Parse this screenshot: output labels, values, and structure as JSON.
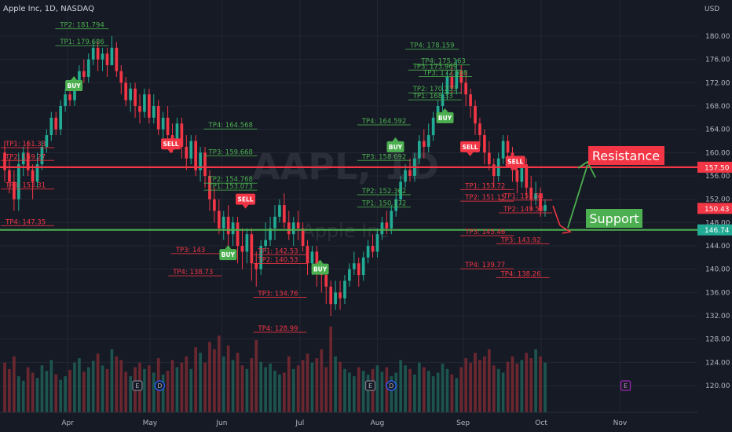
{
  "header": {
    "symbol_line": "Apple Inc, 1D, NASDAQ",
    "currency": "USD"
  },
  "watermark": {
    "ticker": "AAPL, 1D",
    "name": "Apple Inc"
  },
  "price_axis": {
    "ticks": [
      "180.00",
      "176.00",
      "172.00",
      "168.00",
      "164.00",
      "160.00",
      "156.00",
      "152.00",
      "148.00",
      "144.00",
      "140.00",
      "136.00",
      "132.00",
      "128.00",
      "124.00",
      "120.00"
    ]
  },
  "time_axis": {
    "labels": [
      {
        "label": "Apr",
        "t": 0.097
      },
      {
        "label": "May",
        "t": 0.215
      },
      {
        "label": "Jun",
        "t": 0.318
      },
      {
        "label": "Jul",
        "t": 0.43
      },
      {
        "label": "Aug",
        "t": 0.541
      },
      {
        "label": "Sep",
        "t": 0.664
      },
      {
        "label": "Oct",
        "t": 0.776
      },
      {
        "label": "Nov",
        "t": 0.889
      }
    ]
  },
  "price_badges": [
    {
      "label": "157.50",
      "price": 157.5,
      "color": "#f23645"
    },
    {
      "label": "150.43",
      "price": 150.43,
      "color": "#f23645"
    },
    {
      "label": "146.74",
      "price": 146.74,
      "color": "#22ab94"
    }
  ],
  "lines": {
    "resistance": {
      "price": 157.5,
      "color": "#f23645",
      "label": "Resistance"
    },
    "support": {
      "price": 146.74,
      "color": "#4caf50",
      "label": "Support"
    }
  },
  "signals": [
    {
      "label": "BUY",
      "t": 0.106,
      "price": 171.5,
      "dir": "up"
    },
    {
      "label": "SELL",
      "t": 0.245,
      "price": 161.5,
      "dir": "down"
    },
    {
      "label": "SELL",
      "t": 0.352,
      "price": 152.0,
      "dir": "down"
    },
    {
      "label": "BUY",
      "t": 0.327,
      "price": 142.5,
      "dir": "up"
    },
    {
      "label": "BUY",
      "t": 0.459,
      "price": 140.0,
      "dir": "up"
    },
    {
      "label": "BUY",
      "t": 0.567,
      "price": 161.0,
      "dir": "up"
    },
    {
      "label": "BUY",
      "t": 0.638,
      "price": 166.0,
      "dir": "up"
    },
    {
      "label": "SELL",
      "t": 0.674,
      "price": 161.0,
      "dir": "down"
    },
    {
      "label": "SELL",
      "t": 0.739,
      "price": 158.5,
      "dir": "down"
    }
  ],
  "tp_labels": [
    {
      "text": "TP2: 181.794",
      "t": 0.086,
      "price": 181.8,
      "color": "#4caf50"
    },
    {
      "text": "TP1: 179.686",
      "t": 0.086,
      "price": 178.9,
      "color": "#4caf50"
    },
    {
      "text": "TP4: 164.568",
      "t": 0.299,
      "price": 164.6,
      "color": "#4caf50"
    },
    {
      "text": "TP3: 159.668",
      "t": 0.299,
      "price": 160.0,
      "color": "#4caf50"
    },
    {
      "text": "TP2: 154.768",
      "t": 0.299,
      "price": 155.3,
      "color": "#4caf50"
    },
    {
      "text": "TP1: 153.073",
      "t": 0.299,
      "price": 154.1,
      "color": "#4caf50"
    },
    {
      "text": "TP1: 161.33",
      "t": 0.008,
      "price": 161.4,
      "color": "#f23645"
    },
    {
      "text": "TP2: 159.27",
      "t": 0.008,
      "price": 159.2,
      "color": "#f23645"
    },
    {
      "text": "TP3: 153.31",
      "t": 0.008,
      "price": 154.3,
      "color": "#f23645"
    },
    {
      "text": "TP4: 147.35",
      "t": 0.008,
      "price": 148.0,
      "color": "#f23645"
    },
    {
      "text": "TP3: 143",
      "t": 0.252,
      "price": 143.2,
      "color": "#f23645"
    },
    {
      "text": "TP4: 138.73",
      "t": 0.248,
      "price": 139.4,
      "color": "#f23645"
    },
    {
      "text": "TP1: 142.53",
      "t": 0.37,
      "price": 143.0,
      "color": "#f23645"
    },
    {
      "text": "TP2: 140.53",
      "t": 0.37,
      "price": 141.5,
      "color": "#f23645"
    },
    {
      "text": "TP3: 134.76",
      "t": 0.37,
      "price": 135.7,
      "color": "#f23645"
    },
    {
      "text": "TP4: 128.99",
      "t": 0.37,
      "price": 129.7,
      "color": "#f23645"
    },
    {
      "text": "TP4: 178.159",
      "t": 0.588,
      "price": 178.3,
      "color": "#4caf50"
    },
    {
      "text": "TP4: 175.163",
      "t": 0.604,
      "price": 175.6,
      "color": "#4caf50"
    },
    {
      "text": "TP3: 173.969",
      "t": 0.592,
      "price": 174.7,
      "color": "#4caf50"
    },
    {
      "text": "TP3: 172.698",
      "t": 0.607,
      "price": 173.6,
      "color": "#4caf50"
    },
    {
      "text": "TP2: 170.233",
      "t": 0.592,
      "price": 170.8,
      "color": "#4caf50"
    },
    {
      "text": "TP1: 168.33",
      "t": 0.592,
      "price": 169.6,
      "color": "#4caf50"
    },
    {
      "text": "TP4: 164.592",
      "t": 0.519,
      "price": 165.3,
      "color": "#4caf50"
    },
    {
      "text": "TP3: 158.692",
      "t": 0.519,
      "price": 159.2,
      "color": "#4caf50"
    },
    {
      "text": "TP2: 152.362",
      "t": 0.519,
      "price": 153.3,
      "color": "#4caf50"
    },
    {
      "text": "TP1: 150.172",
      "t": 0.519,
      "price": 151.2,
      "color": "#4caf50"
    },
    {
      "text": "TP1: 153.72",
      "t": 0.667,
      "price": 154.2,
      "color": "#f23645"
    },
    {
      "text": "TP2: 151.15",
      "t": 0.667,
      "price": 152.2,
      "color": "#f23645"
    },
    {
      "text": "TP1: 151.54",
      "t": 0.722,
      "price": 152.4,
      "color": "#f23645"
    },
    {
      "text": "TP2: 149.58",
      "t": 0.722,
      "price": 150.2,
      "color": "#f23645"
    },
    {
      "text": "TP3: 145.46",
      "t": 0.667,
      "price": 146.3,
      "color": "#f23645"
    },
    {
      "text": "TP3: 143.92",
      "t": 0.718,
      "price": 144.9,
      "color": "#f23645"
    },
    {
      "text": "TP4: 139.77",
      "t": 0.667,
      "price": 140.6,
      "color": "#f23645"
    },
    {
      "text": "TP4: 138.26",
      "t": 0.718,
      "price": 139.1,
      "color": "#f23645"
    }
  ],
  "event_markers": [
    {
      "label": "E",
      "t": 0.197,
      "color": "#787b86"
    },
    {
      "label": "D",
      "t": 0.229,
      "color": "#2962ff"
    },
    {
      "label": "E",
      "t": 0.531,
      "color": "#787b86"
    },
    {
      "label": "D",
      "t": 0.561,
      "color": "#2962ff"
    },
    {
      "label": "E",
      "t": 0.897,
      "color": "#9c27b0"
    }
  ],
  "colors": {
    "up": "#22ab94",
    "down": "#f23645",
    "background": "#161a25",
    "grid": "#232734",
    "text": "#b2b5be"
  },
  "chart_data": {
    "type": "candlestick",
    "y_range": [
      118,
      184
    ],
    "x_range_months": [
      "Mar",
      "Nov"
    ],
    "volume_axis": "none",
    "bars": [
      [
        160,
        157,
        162,
        155
      ],
      [
        157,
        155,
        159,
        153
      ],
      [
        155,
        152,
        157,
        150
      ],
      [
        152,
        158,
        160,
        150
      ],
      [
        158,
        160,
        161,
        156
      ],
      [
        160,
        157,
        162,
        156
      ],
      [
        157,
        155,
        158,
        152
      ],
      [
        155,
        158,
        160,
        154
      ],
      [
        158,
        161,
        162,
        157
      ],
      [
        161,
        163,
        164,
        160
      ],
      [
        163,
        166,
        167,
        162
      ],
      [
        166,
        164,
        167,
        163
      ],
      [
        164,
        168,
        169,
        163
      ],
      [
        168,
        170,
        171,
        167
      ],
      [
        170,
        169,
        172,
        168
      ],
      [
        169,
        172,
        173,
        168
      ],
      [
        172,
        174,
        175,
        171
      ],
      [
        174,
        173,
        176,
        172
      ],
      [
        173,
        176,
        177,
        172
      ],
      [
        176,
        178,
        179,
        175
      ],
      [
        178,
        176,
        179,
        174
      ],
      [
        176,
        177,
        178,
        174
      ],
      [
        177,
        175,
        178,
        173
      ],
      [
        175,
        178,
        180,
        175
      ],
      [
        178,
        174,
        179,
        173
      ],
      [
        174,
        172,
        175,
        170
      ],
      [
        172,
        169,
        173,
        168
      ],
      [
        169,
        171,
        172,
        167
      ],
      [
        171,
        168,
        172,
        166
      ],
      [
        168,
        167,
        170,
        165
      ],
      [
        167,
        170,
        171,
        166
      ],
      [
        170,
        166,
        171,
        165
      ],
      [
        166,
        168,
        170,
        165
      ],
      [
        168,
        164,
        169,
        163
      ],
      [
        164,
        166,
        167,
        162
      ],
      [
        166,
        163,
        168,
        162
      ],
      [
        163,
        162,
        165,
        160
      ],
      [
        162,
        165,
        166,
        161
      ],
      [
        165,
        161,
        166,
        159
      ],
      [
        161,
        159,
        163,
        157
      ],
      [
        159,
        162,
        163,
        158
      ],
      [
        162,
        157,
        163,
        156
      ],
      [
        157,
        160,
        161,
        155
      ],
      [
        160,
        156,
        161,
        154
      ],
      [
        156,
        152,
        157,
        150
      ],
      [
        152,
        150,
        154,
        148
      ],
      [
        150,
        147,
        152,
        146
      ],
      [
        147,
        149,
        150,
        145
      ],
      [
        149,
        146,
        151,
        143
      ],
      [
        146,
        148,
        149,
        144
      ],
      [
        148,
        144,
        149,
        141
      ],
      [
        144,
        143,
        147,
        140
      ],
      [
        143,
        146,
        147,
        141
      ],
      [
        146,
        141,
        147,
        138
      ],
      [
        141,
        140,
        143,
        137
      ],
      [
        140,
        144,
        145,
        139
      ],
      [
        144,
        145,
        148,
        143
      ],
      [
        145,
        147,
        149,
        144
      ],
      [
        147,
        149,
        151,
        145
      ],
      [
        149,
        151,
        152,
        148
      ],
      [
        151,
        148,
        153,
        147
      ],
      [
        148,
        146,
        150,
        145
      ],
      [
        146,
        148,
        149,
        144
      ],
      [
        148,
        147,
        150,
        145
      ],
      [
        147,
        144,
        148,
        143
      ],
      [
        144,
        141,
        145,
        139
      ],
      [
        141,
        143,
        144,
        139
      ],
      [
        143,
        140,
        144,
        137
      ],
      [
        140,
        139,
        141,
        136
      ],
      [
        139,
        137,
        140,
        134
      ],
      [
        137,
        134,
        138,
        132
      ],
      [
        134,
        136,
        138,
        133
      ],
      [
        136,
        135,
        138,
        133
      ],
      [
        135,
        138,
        139,
        134
      ],
      [
        138,
        140,
        141,
        137
      ],
      [
        140,
        141,
        143,
        139
      ],
      [
        141,
        139,
        142,
        137
      ],
      [
        139,
        142,
        143,
        138
      ],
      [
        142,
        144,
        145,
        141
      ],
      [
        144,
        143,
        146,
        142
      ],
      [
        143,
        146,
        147,
        142
      ],
      [
        146,
        148,
        149,
        145
      ],
      [
        148,
        147,
        150,
        146
      ],
      [
        147,
        150,
        151,
        146
      ],
      [
        150,
        152,
        153,
        149
      ],
      [
        152,
        155,
        156,
        151
      ],
      [
        155,
        157,
        158,
        154
      ],
      [
        157,
        156,
        159,
        155
      ],
      [
        156,
        159,
        160,
        155
      ],
      [
        159,
        162,
        163,
        158
      ],
      [
        162,
        161,
        164,
        159
      ],
      [
        161,
        163,
        165,
        160
      ],
      [
        163,
        166,
        167,
        162
      ],
      [
        166,
        168,
        169,
        165
      ],
      [
        168,
        170,
        172,
        167
      ],
      [
        170,
        173,
        174,
        169
      ],
      [
        173,
        171,
        175,
        170
      ],
      [
        171,
        174,
        176,
        170
      ],
      [
        174,
        172,
        175,
        170
      ],
      [
        172,
        170,
        174,
        168
      ],
      [
        170,
        168,
        171,
        166
      ],
      [
        168,
        165,
        169,
        163
      ],
      [
        165,
        163,
        166,
        161
      ],
      [
        163,
        160,
        164,
        158
      ],
      [
        160,
        158,
        162,
        157
      ],
      [
        158,
        156,
        159,
        154
      ],
      [
        156,
        159,
        160,
        155
      ],
      [
        159,
        162,
        163,
        158
      ],
      [
        162,
        160,
        163,
        158
      ],
      [
        160,
        157,
        161,
        155
      ],
      [
        157,
        155,
        158,
        153
      ],
      [
        155,
        158,
        159,
        154
      ],
      [
        158,
        154,
        159,
        152
      ],
      [
        154,
        152,
        156,
        150
      ],
      [
        152,
        153,
        155,
        151
      ],
      [
        153,
        150,
        154,
        149
      ],
      [
        150,
        151,
        152,
        149
      ]
    ],
    "volume": [
      0.55,
      0.48,
      0.62,
      0.4,
      0.35,
      0.5,
      0.44,
      0.38,
      0.52,
      0.46,
      0.58,
      0.42,
      0.36,
      0.4,
      0.47,
      0.55,
      0.6,
      0.45,
      0.5,
      0.57,
      0.65,
      0.52,
      0.48,
      0.7,
      0.62,
      0.58,
      0.45,
      0.4,
      0.5,
      0.55,
      0.48,
      0.52,
      0.44,
      0.6,
      0.42,
      0.46,
      0.58,
      0.5,
      0.55,
      0.62,
      0.48,
      0.72,
      0.66,
      0.55,
      0.78,
      0.7,
      0.85,
      0.62,
      0.74,
      0.58,
      0.66,
      0.52,
      0.48,
      0.6,
      0.8,
      0.56,
      0.5,
      0.54,
      0.46,
      0.42,
      0.44,
      0.62,
      0.48,
      0.52,
      0.58,
      0.65,
      0.55,
      0.6,
      0.7,
      0.5,
      0.95,
      0.62,
      0.56,
      0.48,
      0.44,
      0.4,
      0.5,
      0.46,
      0.42,
      0.48,
      0.52,
      0.45,
      0.5,
      0.4,
      0.44,
      0.58,
      0.52,
      0.48,
      0.42,
      0.55,
      0.5,
      0.46,
      0.4,
      0.44,
      0.54,
      0.48,
      0.42,
      0.38,
      0.5,
      0.6,
      0.55,
      0.66,
      0.58,
      0.62,
      0.7,
      0.52,
      0.48,
      0.44,
      0.56,
      0.62,
      0.54,
      0.58,
      0.66,
      0.6,
      0.7,
      0.62,
      0.55
    ]
  }
}
